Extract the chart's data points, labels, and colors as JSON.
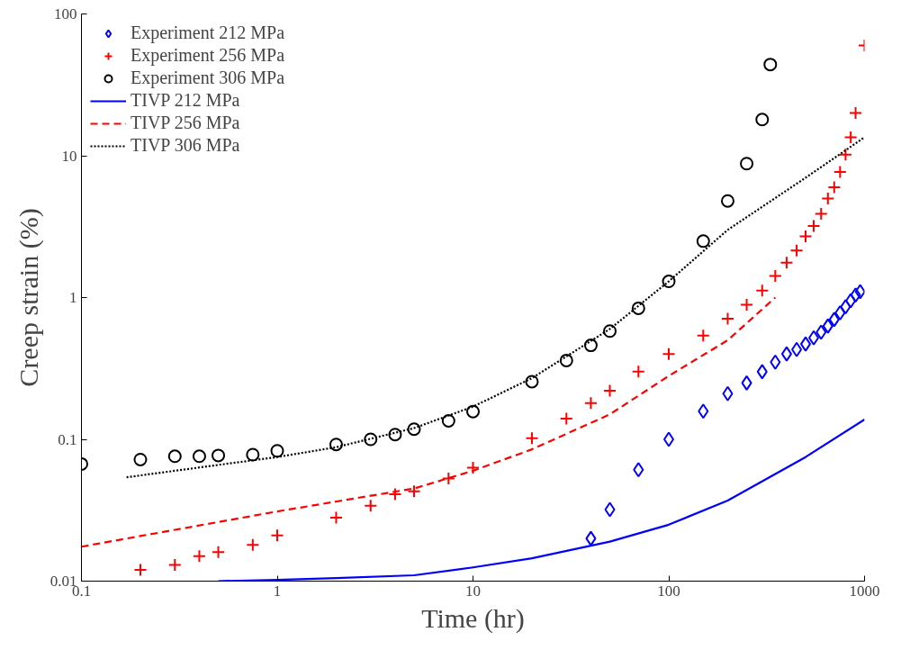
{
  "chart_data": {
    "type": "scatter",
    "xlabel": "Time (hr)",
    "ylabel": "Creep strain (%)",
    "log": "xy",
    "xlim": [
      0.1,
      1000
    ],
    "ylim": [
      0.01,
      100
    ],
    "xticks": [
      0.1,
      1,
      10,
      100,
      1000
    ],
    "yticks": [
      0.01,
      0.1,
      1,
      10,
      100
    ],
    "grid": false,
    "legend": "top left",
    "series": [
      {
        "name": "Experiment 212 MPa",
        "marker": "diamond",
        "color": "#0000ff",
        "x": [
          40,
          50,
          70,
          100,
          150,
          200,
          250,
          300,
          350,
          400,
          450,
          500,
          550,
          600,
          650,
          700,
          750,
          800,
          850,
          900,
          950
        ],
        "values": [
          0.02,
          0.032,
          0.061,
          0.1,
          0.158,
          0.21,
          0.25,
          0.3,
          0.35,
          0.4,
          0.43,
          0.47,
          0.52,
          0.57,
          0.63,
          0.7,
          0.78,
          0.86,
          0.95,
          1.04,
          1.1
        ]
      },
      {
        "name": "Experiment 256 MPa",
        "marker": "cross",
        "color": "#ff0000",
        "x": [
          0.2,
          0.3,
          0.4,
          0.5,
          0.75,
          1,
          2,
          3,
          4,
          5,
          7.5,
          10,
          20,
          30,
          40,
          50,
          70,
          100,
          150,
          200,
          250,
          300,
          350,
          400,
          450,
          500,
          550,
          600,
          650,
          700,
          750,
          800,
          850,
          900,
          1000
        ],
        "values": [
          0.012,
          0.013,
          0.015,
          0.016,
          0.018,
          0.021,
          0.028,
          0.034,
          0.041,
          0.043,
          0.053,
          0.063,
          0.102,
          0.14,
          0.18,
          0.22,
          0.3,
          0.4,
          0.54,
          0.71,
          0.89,
          1.12,
          1.42,
          1.76,
          2.15,
          2.7,
          3.2,
          3.9,
          5.0,
          6.0,
          7.7,
          10.2,
          13.5,
          20,
          60
        ]
      },
      {
        "name": "Experiment 306 MPa",
        "marker": "circle",
        "color": "#000000",
        "x": [
          0.1,
          0.2,
          0.3,
          0.4,
          0.5,
          0.75,
          1,
          2,
          3,
          4,
          5,
          7.5,
          10,
          20,
          30,
          40,
          50,
          70,
          100,
          150,
          200,
          250,
          300,
          330
        ],
        "values": [
          0.067,
          0.072,
          0.076,
          0.076,
          0.077,
          0.078,
          0.083,
          0.092,
          0.1,
          0.108,
          0.118,
          0.135,
          0.157,
          0.255,
          0.36,
          0.46,
          0.58,
          0.84,
          1.3,
          2.5,
          4.8,
          8.8,
          18,
          44
        ]
      },
      {
        "name": "TIVP 212 MPa",
        "type": "line",
        "line_style": "solid",
        "color": "#0000ff",
        "x": [
          0.5,
          1,
          2,
          5,
          10,
          20,
          50,
          100,
          200,
          500,
          1000
        ],
        "values": [
          0.01,
          0.0102,
          0.0105,
          0.011,
          0.0125,
          0.0145,
          0.019,
          0.025,
          0.037,
          0.075,
          0.138
        ]
      },
      {
        "name": "TIVP 256 MPa",
        "type": "line",
        "line_style": "dashed",
        "color": "#ff0000",
        "x": [
          0.1,
          0.3,
          1,
          3,
          5,
          10,
          20,
          50,
          100,
          200,
          350
        ],
        "values": [
          0.0175,
          0.023,
          0.031,
          0.04,
          0.045,
          0.06,
          0.085,
          0.15,
          0.28,
          0.5,
          1.0
        ]
      },
      {
        "name": "TIVP 306 MPa",
        "type": "line",
        "line_style": "dotted",
        "color": "#000000",
        "x": [
          0.17,
          0.5,
          1,
          2,
          5,
          10,
          20,
          50,
          100,
          200,
          500,
          1000
        ],
        "values": [
          0.054,
          0.066,
          0.075,
          0.088,
          0.12,
          0.17,
          0.27,
          0.6,
          1.3,
          3.0,
          7,
          13.5
        ]
      }
    ]
  }
}
